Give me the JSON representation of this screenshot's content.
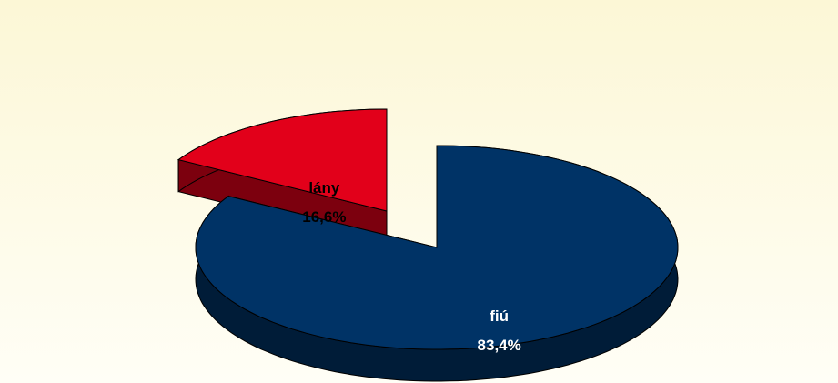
{
  "chart_data": {
    "type": "pie",
    "categories": [
      "fiú",
      "lány"
    ],
    "values": [
      83.4,
      16.6
    ],
    "value_labels": [
      "83,4%",
      "16,6%"
    ],
    "colors": [
      "#003366",
      "#e2001a"
    ]
  }
}
